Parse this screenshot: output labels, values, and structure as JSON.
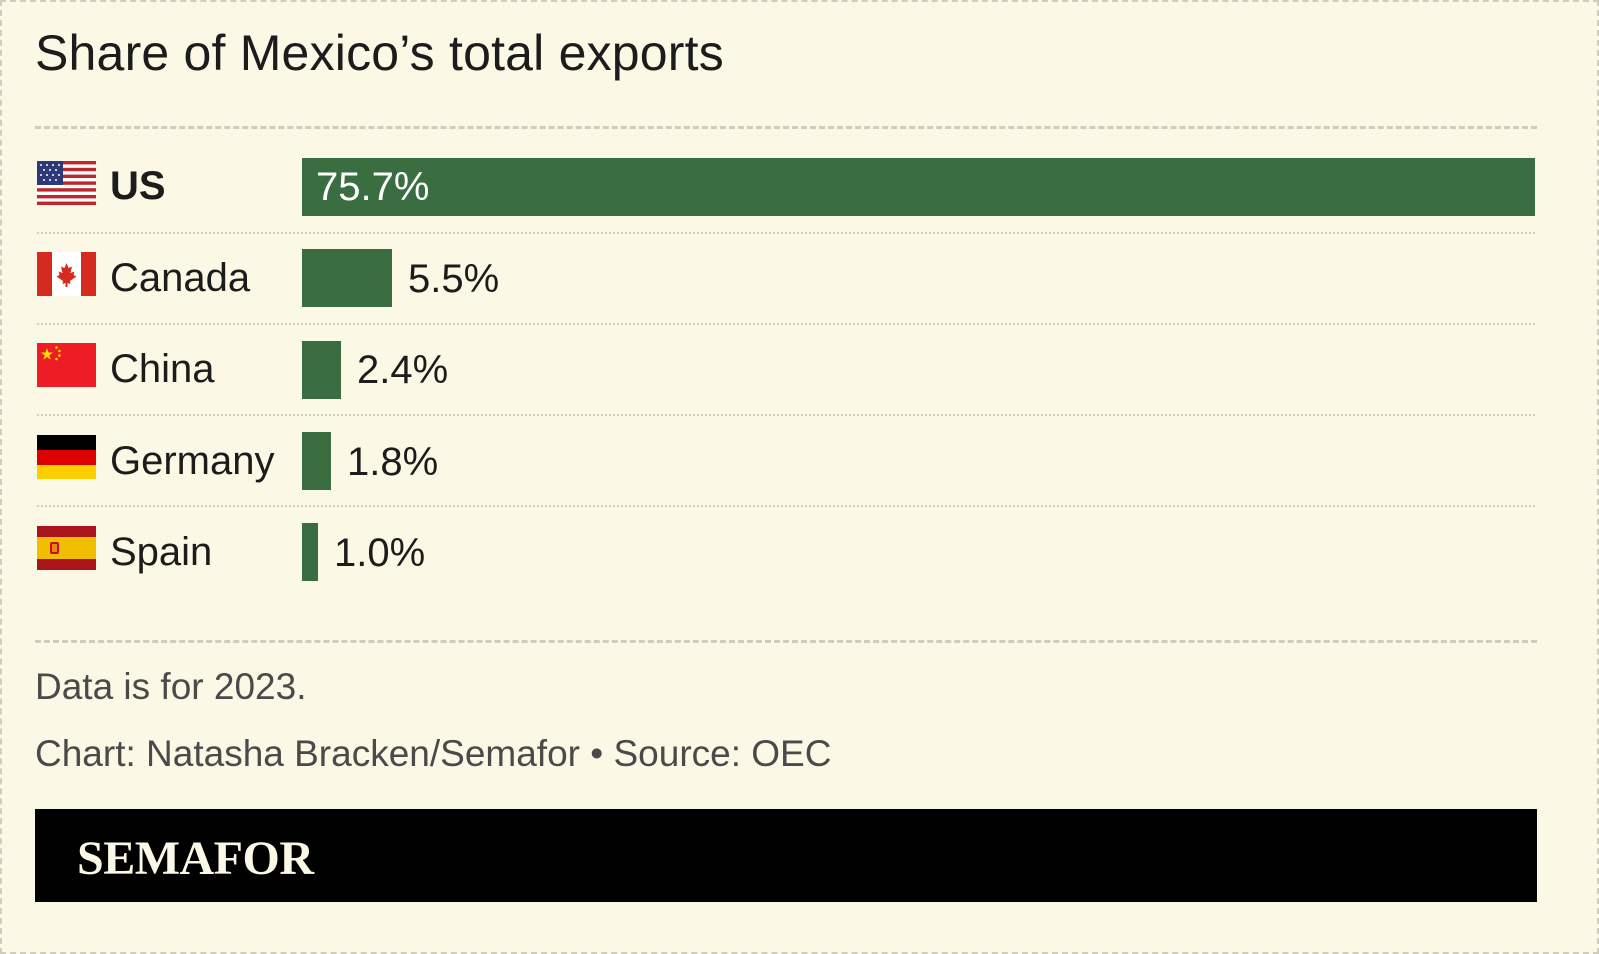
{
  "title": "Share of Mexico’s total exports",
  "chart_data": {
    "type": "bar",
    "orientation": "horizontal",
    "categories": [
      "US",
      "Canada",
      "China",
      "Germany",
      "Spain"
    ],
    "values": [
      75.7,
      5.5,
      2.4,
      1.8,
      1.0
    ],
    "value_labels": [
      "75.7%",
      "5.5%",
      "2.4%",
      "1.8%",
      "1.0%"
    ],
    "unit": "%",
    "xlim": [
      0,
      75.7
    ],
    "bar_color": "#3a6e40",
    "highlight": "US",
    "flags": [
      "us-flag-icon",
      "canada-flag-icon",
      "china-flag-icon",
      "germany-flag-icon",
      "spain-flag-icon"
    ]
  },
  "note": "Data is for 2023.",
  "credit": "Chart: Natasha Bracken/Semafor • Source: OEC",
  "brand": "SEMAFOR",
  "colors": {
    "background": "#fbf8e5",
    "bar": "#3a6e40",
    "footer": "#000000"
  }
}
